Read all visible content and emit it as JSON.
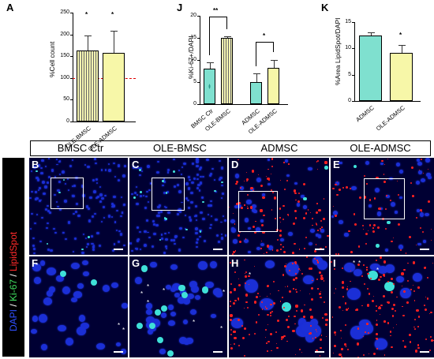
{
  "panels": {
    "A": {
      "letter": "A",
      "ylabel": "%Cell count",
      "ticks": [
        "0",
        "50",
        "100",
        "150",
        "200",
        "250"
      ],
      "categories": [
        "OLE-BMSC",
        "OLE-ADMSC"
      ],
      "significance": [
        "*",
        "*"
      ]
    },
    "J": {
      "letter": "J",
      "ylabel": "%Ki-67+/DAPI",
      "ticks": [
        "0",
        "5",
        "10",
        "15",
        "20"
      ],
      "categories": [
        "BMSC Ctr",
        "OLE-BMSC",
        "ADMSC",
        "OLE-ADMSC"
      ],
      "significance": [
        "**",
        "*"
      ]
    },
    "K": {
      "letter": "K",
      "ylabel": "%Area LipidSpot/DAPI",
      "ticks": [
        "0",
        "5",
        "10",
        "15"
      ],
      "categories": [
        "ADMSC",
        "OLE-ADMSC"
      ],
      "significance": [
        "*"
      ]
    }
  },
  "micrograph_header": [
    "BMSC Ctr",
    "OLE-BMSC",
    "ADMSC",
    "OLE-ADMSC"
  ],
  "stain_legend": {
    "dapi": "DAPI",
    "sep1": " / ",
    "ki67": "Ki-67",
    "sep2": " / ",
    "lipid": "LipidSpot"
  },
  "micrograph_labels": [
    "B",
    "C",
    "D",
    "E",
    "F",
    "G",
    "H",
    "I"
  ],
  "colors": {
    "bar_bmsc": "#f2f2b0",
    "bar_teal": "#7fe0cf",
    "bar_yellow": "#f7f7a8",
    "dashed_line": "#e00000",
    "dapi": "#1b2fd6",
    "ki67": "#3fe0d8",
    "lipid": "#ff2020",
    "background": "#000033"
  },
  "chart_data": [
    {
      "type": "bar",
      "title": "",
      "xlabel": "",
      "ylabel": "%Cell count",
      "categories": [
        "OLE-BMSC",
        "OLE-ADMSC"
      ],
      "values": [
        163,
        158
      ],
      "errors": [
        35,
        50
      ],
      "reference_line": 100,
      "ylim": [
        0,
        250
      ]
    },
    {
      "type": "bar",
      "title": "",
      "xlabel": "",
      "ylabel": "%Ki-67+/DAPI",
      "categories": [
        "BMSC Ctr",
        "OLE-BMSC",
        "ADMSC",
        "OLE-ADMSC"
      ],
      "values": [
        8.0,
        15.0,
        5.0,
        8.3
      ],
      "errors": [
        1.5,
        0.4,
        2.0,
        1.7
      ],
      "ylim": [
        0,
        20
      ]
    },
    {
      "type": "bar",
      "title": "",
      "xlabel": "",
      "ylabel": "%Area LipidSpot/DAPI",
      "categories": [
        "ADMSC",
        "OLE-ADMSC"
      ],
      "values": [
        12.5,
        9.2
      ],
      "errors": [
        0.5,
        1.5
      ],
      "ylim": [
        0,
        15
      ]
    }
  ]
}
